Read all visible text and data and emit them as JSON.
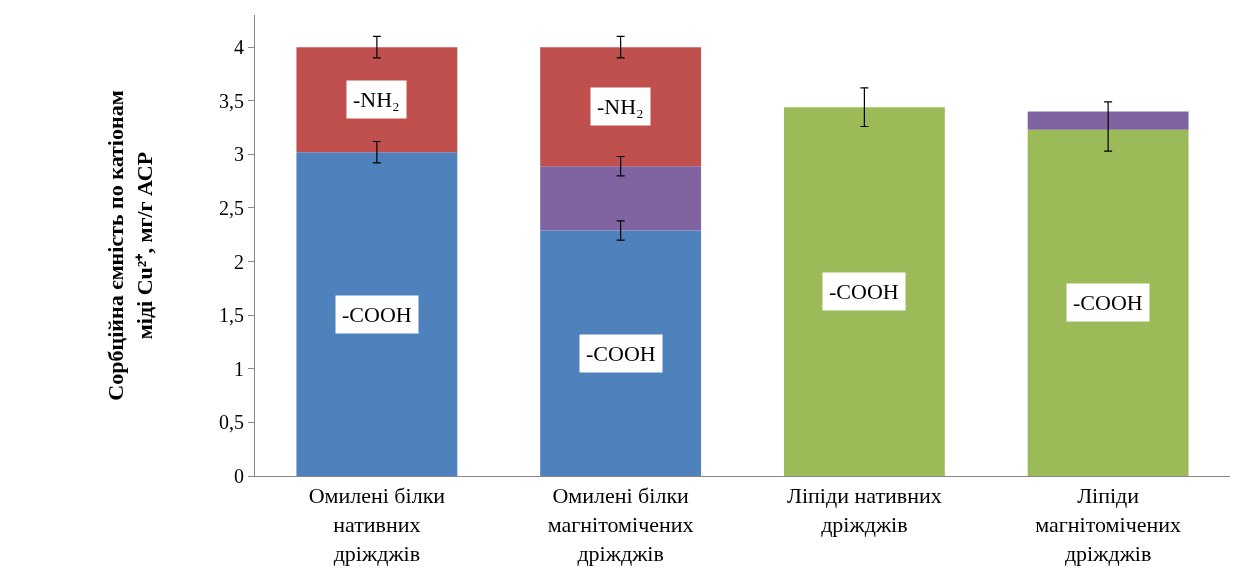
{
  "chart_data": {
    "type": "bar",
    "stacked": true,
    "ylabel": "Сорбційна ємність по катіонам\nміді Cu²⁺, мг/г АСР",
    "categories": [
      "Омилені білки\nнативних\nдріжджів",
      "Омилені білки\nмагнітомічених\nдріжджів",
      "Ліпіди нативних\nдріжджів",
      "Ліпіди\nмагнітомічених\nдріжджів"
    ],
    "series": [
      {
        "name": "-COOH",
        "color": "#4f81bd",
        "colors": [
          "#4f81bd",
          "#4f81bd",
          "#9bbb59",
          "#9bbb59"
        ],
        "values": [
          3.02,
          2.29,
          3.44,
          3.23
        ],
        "errors": [
          0.1,
          0.09,
          0.18,
          [
            3.03,
            3.49
          ]
        ]
      },
      {
        "color": "#8064a2",
        "values": [
          null,
          0.6,
          null,
          0.17
        ],
        "errors": [
          null,
          0.09,
          null,
          null
        ]
      },
      {
        "name": "-NH₂",
        "color": "#c0504d",
        "values": [
          0.98,
          1.11,
          null,
          null
        ],
        "errors": [
          0.1,
          0.1,
          null,
          null
        ]
      }
    ],
    "ylim": [
      0,
      4.3
    ],
    "yticks": [
      0,
      {
        "value": 0.5,
        "label": "0,5"
      },
      1,
      {
        "value": 1.5,
        "label": "1,5"
      },
      2,
      {
        "value": 2.5,
        "label": "2,5"
      },
      3,
      {
        "value": 3.5,
        "label": "3,5"
      },
      4
    ],
    "legend": false
  }
}
